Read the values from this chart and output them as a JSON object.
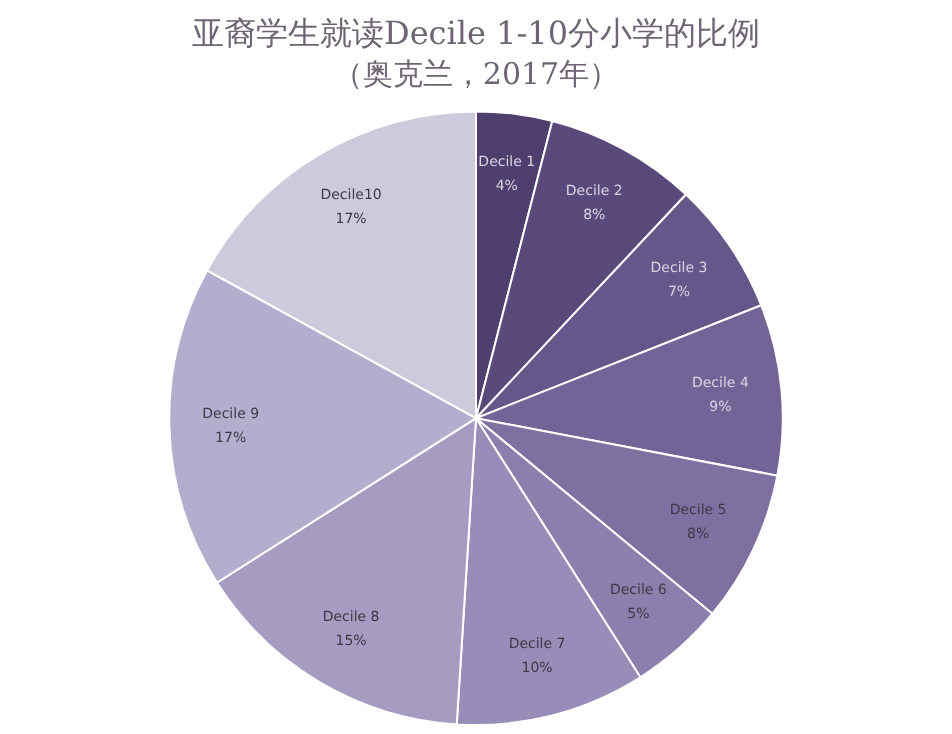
{
  "chart_data": {
    "type": "pie",
    "title": "亚裔学生就读Decile 1-10分小学的比例",
    "subtitle": "（奥克兰，2017年）",
    "categories": [
      "Decile 1",
      "Decile 2",
      "Decile 3",
      "Decile 4",
      "Decile 5",
      "Decile 6",
      "Decile 7",
      "Decile 8",
      "Decile 9",
      "Decile10"
    ],
    "values": [
      4,
      8,
      7,
      9,
      8,
      5,
      10,
      15,
      17,
      17
    ],
    "value_labels": [
      "4%",
      "8%",
      "7%",
      "9%",
      "8%",
      "5%",
      "10%",
      "15%",
      "17%",
      "17%"
    ],
    "colors": [
      "#4e3f6e",
      "#5a4a7c",
      "#66578a",
      "#726496",
      "#7e71a2",
      "#8b7fad",
      "#988db8",
      "#a69cc2",
      "#b5adcd",
      "#cfc9dc"
    ],
    "legend": false
  }
}
